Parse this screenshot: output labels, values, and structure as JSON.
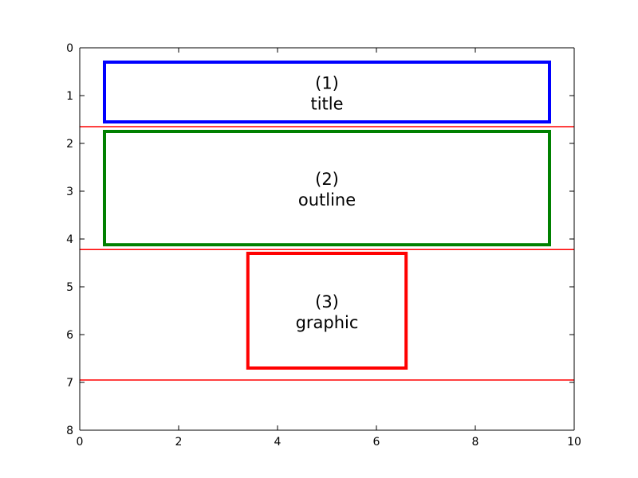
{
  "chart_data": {
    "type": "diagram",
    "title": "",
    "xlabel": "",
    "ylabel": "",
    "xlim": [
      0,
      10
    ],
    "ylim": [
      0,
      8
    ],
    "y_inverted": true,
    "grid": false,
    "x_ticks": [
      0,
      2,
      4,
      6,
      8,
      10
    ],
    "y_ticks": [
      0,
      1,
      2,
      3,
      4,
      5,
      6,
      7,
      8
    ],
    "boxes": [
      {
        "id": "title",
        "x0": 0.5,
        "x1": 9.5,
        "y0": 0.3,
        "y1": 1.55,
        "color": "#0000ff",
        "line1": "(1)",
        "line2": "title"
      },
      {
        "id": "outline",
        "x0": 0.5,
        "x1": 9.5,
        "y0": 1.75,
        "y1": 4.12,
        "color": "#008000",
        "line1": "(2)",
        "line2": "outline"
      },
      {
        "id": "graphic",
        "x0": 3.4,
        "x1": 6.6,
        "y0": 4.3,
        "y1": 6.7,
        "color": "#ff0000",
        "line1": "(3)",
        "line2": "graphic"
      }
    ],
    "separators": [
      {
        "y": 1.65,
        "color": "#ff0000"
      },
      {
        "y": 4.22,
        "color": "#ff0000"
      },
      {
        "y": 6.95,
        "color": "#ff0000"
      }
    ]
  }
}
